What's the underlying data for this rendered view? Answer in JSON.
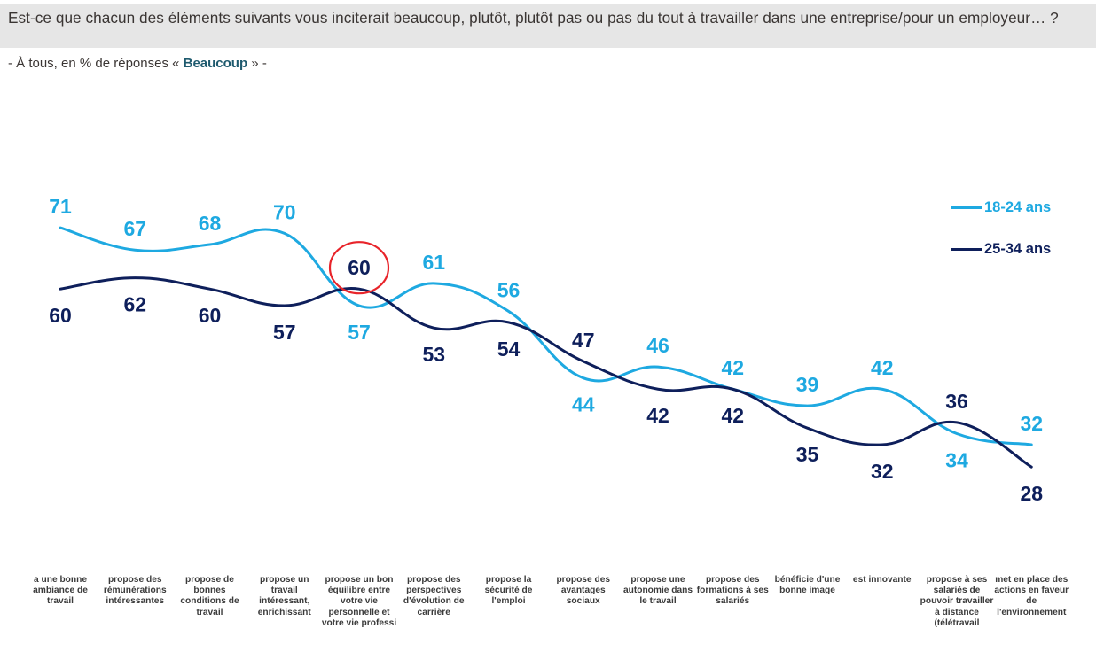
{
  "header": {
    "question": "Est-ce que chacun des éléments suivants vous inciterait beaucoup, plutôt, plutôt pas ou pas du tout à travailler dans une entreprise/pour un employeur… ?",
    "subtitle_prefix": "- À tous, en % de réponses « ",
    "subtitle_emphasis": "Beaucoup",
    "subtitle_suffix": " » -"
  },
  "colors": {
    "series_18_24": "#1ea9e1",
    "series_25_34": "#0e1f5b",
    "highlight_circle": "#e8242a"
  },
  "chart_data": {
    "type": "line",
    "title": "",
    "xlabel": "",
    "ylabel": "% de réponses « Beaucoup »",
    "grid": false,
    "legend_position": "top-right",
    "smoothed": true,
    "categories": [
      "a une bonne ambiance de travail",
      "propose des rémunérations intéressantes",
      "propose de bonnes conditions de travail",
      "propose un travail intéressant, enrichissant",
      "propose un bon équilibre entre votre vie personnelle et votre vie professi",
      "propose des perspectives d'évolution de carrière",
      "propose la sécurité de l'emploi",
      "propose des avantages sociaux",
      "propose une autonomie dans le travail",
      "propose des formations à ses salariés",
      "bénéficie d'une bonne image",
      "est innovante",
      "propose à ses salariés de pouvoir travailler à distance (télétravail",
      "met en place des actions en faveur de l'environnement"
    ],
    "series": [
      {
        "name": "18-24 ans",
        "values": [
          71,
          67,
          68,
          70,
          57,
          61,
          56,
          44,
          46,
          42,
          39,
          42,
          34,
          32
        ]
      },
      {
        "name": "25-34 ans",
        "values": [
          60,
          62,
          60,
          57,
          60,
          53,
          54,
          47,
          42,
          42,
          35,
          32,
          36,
          28
        ]
      }
    ],
    "annotations": [
      {
        "type": "circle",
        "series": "25-34 ans",
        "category_index": 4,
        "value": 60
      }
    ]
  }
}
